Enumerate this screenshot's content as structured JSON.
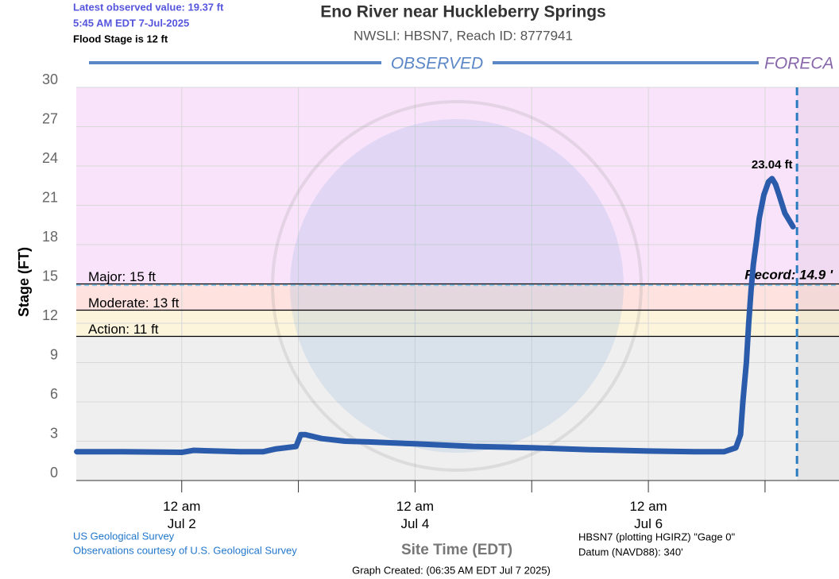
{
  "chart_data": {
    "type": "line",
    "title": "Eno River near Huckleberry Springs",
    "subtitle": "NWSLI: HBSN7, Reach ID: 8777941",
    "latest_value": "Latest observed value: 19.37 ft",
    "latest_time": "5:45 AM EDT 7-Jul-2025",
    "flood_stage_note": "Flood Stage is 12 ft",
    "observed_label": "OBSERVED",
    "forecast_label": "FORECA",
    "ylabel": "Stage (FT)",
    "xlabel": "Site Time (EDT)",
    "credit_1": "US Geological Survey",
    "credit_2": "Observations courtesy of U.S. Geological Survey",
    "datum_1": "HBSN7 (plotting HGIRZ) \"Gage 0\"",
    "datum_2": "Datum (NAVD88): 340'",
    "created": "Graph Created: (06:35 AM EDT Jul 7 2025)",
    "ylim": [
      0,
      30
    ],
    "yticks": [
      0,
      3,
      6,
      9,
      12,
      15,
      18,
      21,
      24,
      27,
      30
    ],
    "xlim": [
      1.096,
      7.634
    ],
    "xticks": [
      {
        "value": 2,
        "label": "12 am\nJul 2"
      },
      {
        "value": 4,
        "label": "12 am\nJul 4"
      },
      {
        "value": 6,
        "label": "12 am\nJul 6"
      }
    ],
    "xminor": [
      3,
      5,
      7
    ],
    "grid": true,
    "flood_categories": [
      {
        "label": "Major: 15 ft",
        "value": 15,
        "color": "#f9e3fb"
      },
      {
        "label": "Moderate: 13 ft",
        "value": 13,
        "color": "#fde2e0"
      },
      {
        "label": "Action: 11 ft",
        "value": 11,
        "color": "#fdf4dc"
      }
    ],
    "below_color": "#efefef",
    "record": {
      "label": "Record: 14.9 '",
      "value": 14.9
    },
    "forecast_start": 7.274,
    "peak": {
      "label": "23.04 ft",
      "x": 7.06,
      "value": 23.04
    },
    "series": [
      {
        "name": "Observed",
        "color": "#2b5bab",
        "x": [
          1.1,
          1.5,
          2.0,
          2.1,
          2.5,
          2.7,
          2.8,
          2.98,
          3.02,
          3.06,
          3.2,
          3.4,
          3.6,
          4.0,
          4.5,
          5.0,
          5.5,
          6.0,
          6.4,
          6.65,
          6.75,
          6.79,
          6.81,
          6.84,
          6.86,
          6.88,
          6.9,
          6.93,
          6.95,
          6.99,
          7.03,
          7.06,
          7.09,
          7.12,
          7.17,
          7.24
        ],
        "values": [
          2.2,
          2.2,
          2.15,
          2.3,
          2.2,
          2.2,
          2.4,
          2.6,
          3.5,
          3.5,
          3.2,
          3.0,
          2.95,
          2.8,
          2.6,
          2.5,
          2.35,
          2.25,
          2.2,
          2.2,
          2.5,
          3.5,
          6,
          9,
          12,
          14.5,
          16.5,
          18.5,
          20,
          21.8,
          22.8,
          23.04,
          22.6,
          21.8,
          20.4,
          19.37
        ]
      }
    ]
  }
}
